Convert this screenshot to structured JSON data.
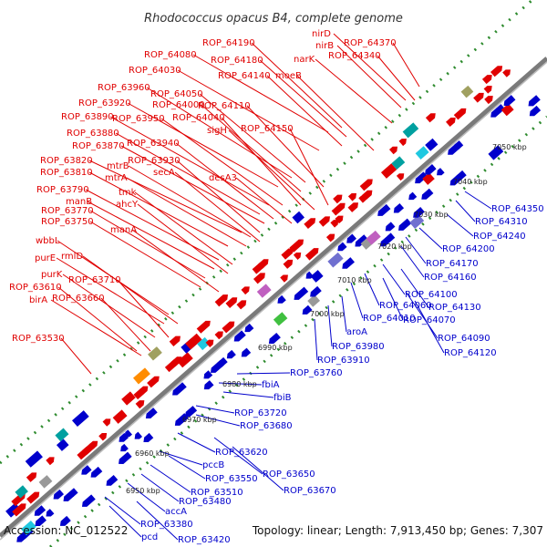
{
  "title": "Rhodococcus opacus B4, complete genome",
  "footer": {
    "accession": "Accession: NC_012522",
    "topology": "Topology: linear; Length: 7,913,450 bp; Genes: 7,307"
  },
  "ticks": [
    "6950 kbp",
    "6960 kbp",
    "6970 kbp",
    "6980 kbp",
    "6990 kbp",
    "7000 kbp",
    "7010 kbp",
    "7020 kbp",
    "7030 kbp",
    "7040 kbp",
    "7050 kbp"
  ],
  "red_labels": [
    "ROP_64370",
    "nirD",
    "nirB",
    "narK",
    "ROP_64340",
    "ROP_64190",
    "ROP_64080",
    "ROP_64180",
    "ROP_64030",
    "ROP_64140",
    "moeB",
    "ROP_63960",
    "ROP_64050",
    "ROP_63920",
    "ROP_64000",
    "ROP_64110",
    "ROP_63890",
    "ROP_63950",
    "ROP_64040",
    "sigH",
    "ROP_64150",
    "ROP_63880",
    "ROP_63870",
    "ROP_63940",
    "ROP_63820",
    "ROP_63930",
    "mtrB",
    "ROP_63810",
    "mtrA",
    "secA",
    "desA3",
    "ROP_63790",
    "tmk",
    "manB",
    "ahcY",
    "ROP_63770",
    "ROP_63750",
    "manA",
    "wbbL",
    "purE",
    "rmlD",
    "purK",
    "ROP_63710",
    "ROP_63610",
    "ROP_63660",
    "birA",
    "ROP_63530"
  ],
  "blue_labels": [
    "ROP_64350",
    "ROP_64310",
    "ROP_64240",
    "ROP_64200",
    "ROP_64170",
    "ROP_64160",
    "ROP_64100",
    "ROP_64130",
    "ROP_64060",
    "ROP_64070",
    "ROP_64010",
    "ROP_64090",
    "ROP_64120",
    "aroA",
    "ROP_63980",
    "ROP_63910",
    "ROP_63760",
    "fbiA",
    "fbiB",
    "ROP_63720",
    "ROP_63680",
    "ROP_63620",
    "pccB",
    "ROP_63650",
    "ROP_63550",
    "ROP_63670",
    "ROP_63510",
    "accA",
    "ROP_63480",
    "ROP_63380",
    "pcd",
    "ROP_63420"
  ],
  "colors": {
    "forward": "#e00000",
    "reverse": "#0000cc",
    "axis": "#888888",
    "dots": "#2e8b2e"
  }
}
